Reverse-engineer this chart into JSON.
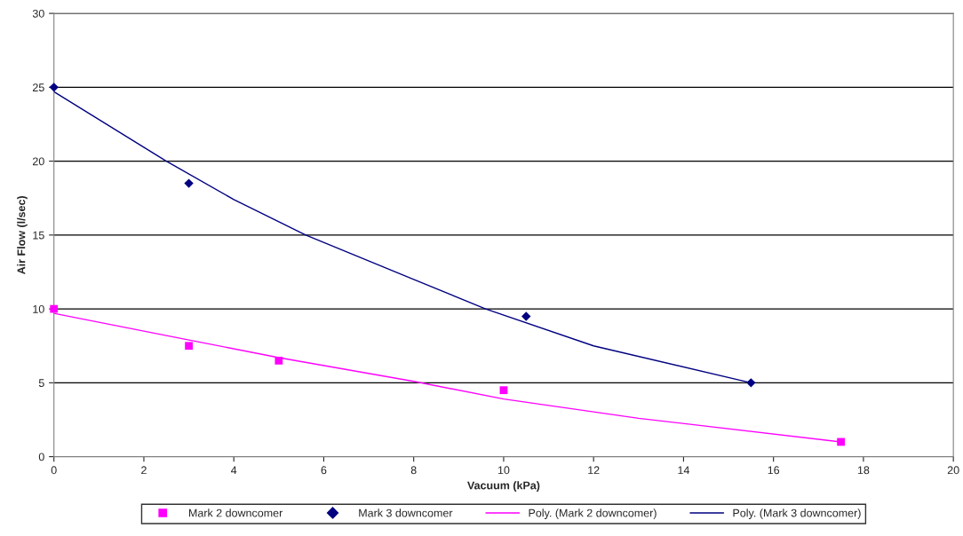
{
  "chart_data": {
    "type": "scatter",
    "xlabel": "Vacuum (kPa)",
    "ylabel": "Air Flow (l/sec)",
    "xlim": [
      0,
      20
    ],
    "ylim": [
      0,
      30
    ],
    "xticks": [
      0,
      2,
      4,
      6,
      8,
      10,
      12,
      14,
      16,
      18,
      20
    ],
    "yticks": [
      0,
      5,
      10,
      15,
      20,
      25,
      30
    ],
    "grid": "y",
    "legend": "bottom",
    "series": [
      {
        "name": "Mark 2 downcomer",
        "marker": "square",
        "color": "#ff00ff",
        "x": [
          0,
          3,
          5,
          10,
          17.5
        ],
        "values": [
          10,
          7.5,
          6.5,
          4.5,
          1
        ]
      },
      {
        "name": "Mark 3 downcomer",
        "marker": "diamond",
        "color": "#000080",
        "x": [
          0,
          3,
          10.5,
          15.5
        ],
        "values": [
          25,
          18.5,
          9.5,
          5
        ]
      },
      {
        "name": "Poly. (Mark 2 downcomer)",
        "type": "line",
        "marker": "none",
        "color": "#ff00ff",
        "x": [
          0,
          3,
          5,
          8,
          10,
          13,
          17.5
        ],
        "values": [
          9.7,
          7.9,
          6.7,
          5.1,
          3.9,
          2.6,
          1.0
        ]
      },
      {
        "name": "Poly. (Mark 3 downcomer)",
        "type": "line",
        "marker": "none",
        "color": "#000080",
        "x": [
          0,
          2.5,
          4,
          5.6,
          8,
          9.6,
          12,
          15.5
        ],
        "values": [
          24.7,
          20,
          17.4,
          15,
          12,
          10,
          7.5,
          5
        ]
      }
    ]
  }
}
